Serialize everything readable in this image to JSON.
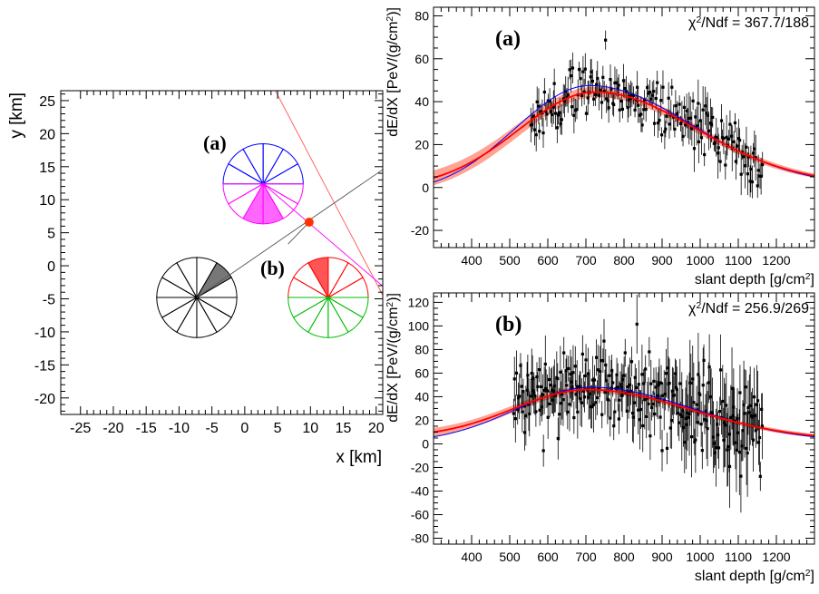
{
  "chart_data": [
    {
      "type": "scatter",
      "panel": "map",
      "xlabel": "x [km]",
      "ylabel": "y [km]",
      "xlim": [
        -28,
        21
      ],
      "ylim": [
        -22.5,
        26.5
      ],
      "xticks": [
        "-25",
        "-20",
        "-15",
        "-10",
        "-5",
        "0",
        "5",
        "10",
        "15",
        "20"
      ],
      "yticks": [
        "-20",
        "-15",
        "-10",
        "-5",
        "0",
        "5",
        "10",
        "15",
        "20",
        "25"
      ],
      "labels": [
        "(a)",
        "(b)"
      ],
      "core": {
        "x": 9.8,
        "y": 6.6,
        "color": "#ff3300"
      },
      "detectors": [
        {
          "x": 2.8,
          "y": 12.4,
          "r": 6.1,
          "spokes": 12,
          "top_color": "#0000ff",
          "bottom_color": "#ff00ff",
          "fill": [
            8,
            9
          ],
          "fill_color": "#ff66ff"
        },
        {
          "x": -7.3,
          "y": -4.8,
          "r": 6.1,
          "spokes": 12,
          "top_color": "#000000",
          "bottom_color": "#000000",
          "fill": [
            1
          ],
          "fill_color": "#777777"
        },
        {
          "x": 12.7,
          "y": -4.8,
          "r": 6.1,
          "spokes": 12,
          "top_color": "#ff0000",
          "bottom_color": "#00bb00",
          "fill": [
            3
          ],
          "fill_color": "#ff5555"
        }
      ],
      "lines": [
        {
          "x": [
            4.4,
            21.5
          ],
          "y": [
            27,
            -5.4
          ],
          "color": "#ff5555"
        },
        {
          "x": [
            -7.3,
            21.5
          ],
          "y": [
            -4.8,
            14.9
          ],
          "color": "#555555"
        },
        {
          "x": [
            2.8,
            21.5
          ],
          "y": [
            12.4,
            -3.5
          ],
          "color": "#ff00ff"
        },
        {
          "x": [
            6.6,
            9.8
          ],
          "y": [
            3.3,
            6.6
          ],
          "color": "#555555"
        }
      ]
    },
    {
      "type": "scatter",
      "panel": "a",
      "label": "(a)",
      "stat": "χ²/Ndf = 367.7/188",
      "xlabel": "slant depth [g/cm²]",
      "ylabel": "dE/dX [PeV/(g/cm²)]",
      "xlim": [
        300,
        1300
      ],
      "ylim": [
        -28,
        84
      ],
      "xticks": [
        400,
        500,
        600,
        700,
        800,
        900,
        1000,
        1100,
        1200
      ],
      "yticks": [
        -20,
        0,
        20,
        40,
        60,
        80
      ],
      "fits": [
        {
          "color": "#0000ff",
          "xmax": 710,
          "ymax": 47.5,
          "y_left": 2.5,
          "y_right": 5
        },
        {
          "color": "#ff0000",
          "xmax": 725,
          "ymax": 44.5,
          "y_left": 4.5,
          "y_right": 5.5
        }
      ],
      "band": {
        "color": "#ff9a8a",
        "half_width_left": 3.5,
        "half_width_right": 1
      },
      "points": {
        "x_range": [
          555,
          1165
        ],
        "n": 188,
        "scatter": 6.5,
        "err": 6.5,
        "seed": 7
      }
    },
    {
      "type": "scatter",
      "panel": "b",
      "label": "(b)",
      "stat": "χ²/Ndf = 256.9/269",
      "xlabel": "slant depth [g/cm²]",
      "ylabel": "dE/dX [PeV/(g/cm²)]",
      "xlim": [
        300,
        1300
      ],
      "ylim": [
        -85,
        128
      ],
      "xticks": [
        400,
        500,
        600,
        700,
        800,
        900,
        1000,
        1100,
        1200
      ],
      "yticks": [
        -80,
        -60,
        -40,
        -20,
        0,
        20,
        40,
        60,
        80,
        100,
        120
      ],
      "fits": [
        {
          "color": "#0000ff",
          "xmax": 715,
          "ymax": 48,
          "y_left": 6,
          "y_right": 6
        },
        {
          "color": "#ff0000",
          "xmax": 705,
          "ymax": 46,
          "y_left": 10,
          "y_right": 7
        }
      ],
      "band": {
        "color": "#ff9a8a",
        "half_width_left": 3.5,
        "half_width_right": 1.5
      },
      "points": {
        "x_range": [
          510,
          1165
        ],
        "n": 269,
        "scatter": 18,
        "err": 20,
        "seed": 13
      }
    }
  ]
}
